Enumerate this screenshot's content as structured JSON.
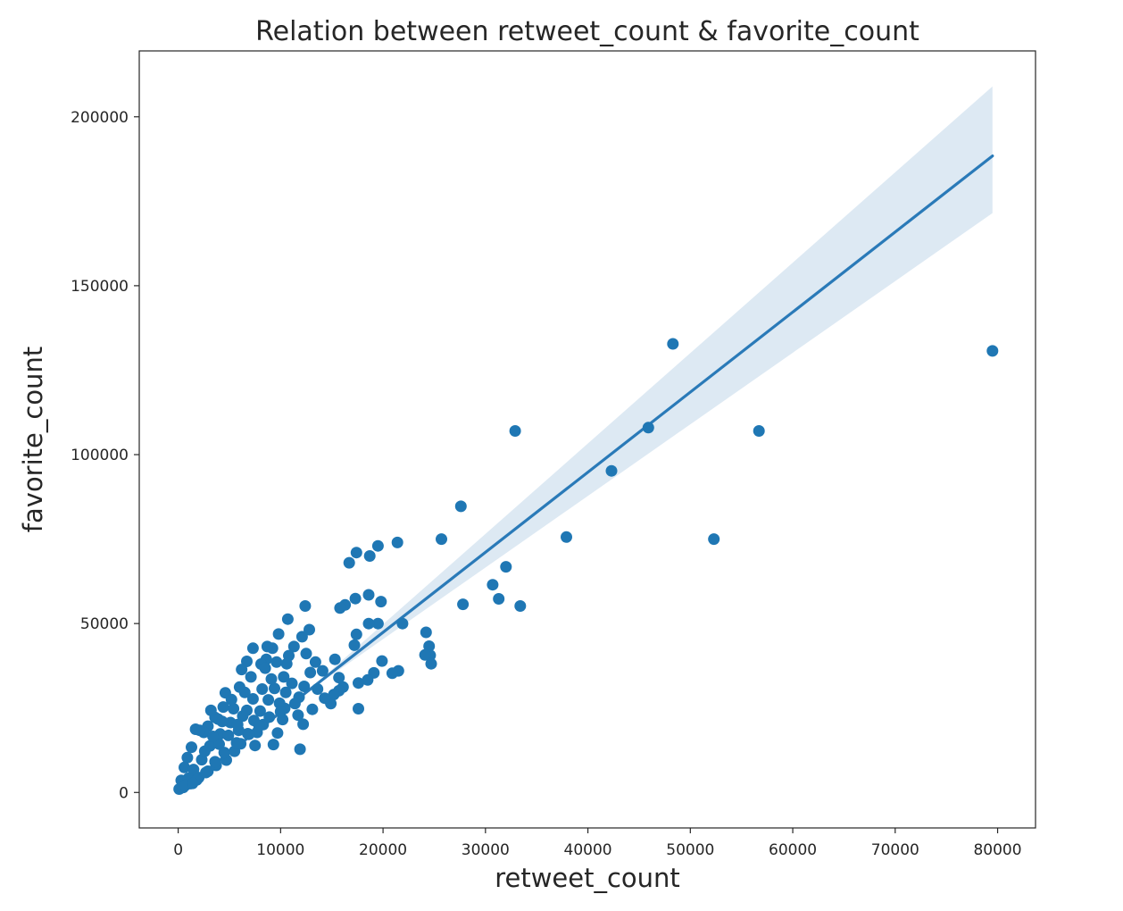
{
  "chart_data": {
    "type": "scatter",
    "title": "Relation between retweet_count & favorite_count",
    "xlabel": "retweet_count",
    "ylabel": "favorite_count",
    "xlim": [
      -3800,
      83700
    ],
    "ylim": [
      -10500,
      219500
    ],
    "xticks": [
      0,
      10000,
      20000,
      30000,
      40000,
      50000,
      60000,
      70000,
      80000
    ],
    "yticks": [
      0,
      50000,
      100000,
      150000,
      200000
    ],
    "grid": false,
    "legend": "none",
    "colors": {
      "points": "#1f77b4",
      "line": "#2a7ab8",
      "ci_band": "#dde9f3",
      "frame": "#262626"
    },
    "regression": {
      "slope": 2.37,
      "intercept": 0,
      "x_range": [
        0,
        79500
      ],
      "ci_end_upper": 209000,
      "ci_end_lower": 171500,
      "ci_pinch_x": 13000
    },
    "points": [
      [
        79500,
        130700
      ],
      [
        48300,
        132800
      ],
      [
        45900,
        108000
      ],
      [
        56700,
        107000
      ],
      [
        32900,
        107000
      ],
      [
        42300,
        95200
      ],
      [
        52300,
        75000
      ],
      [
        37900,
        75600
      ],
      [
        27600,
        84700
      ],
      [
        25700,
        75000
      ],
      [
        32000,
        66800
      ],
      [
        30700,
        61500
      ],
      [
        31300,
        57300
      ],
      [
        33400,
        55200
      ],
      [
        27800,
        55700
      ],
      [
        21400,
        74000
      ],
      [
        19500,
        73000
      ],
      [
        18700,
        70000
      ],
      [
        17400,
        71000
      ],
      [
        16700,
        68000
      ],
      [
        21900,
        50000
      ],
      [
        19800,
        56500
      ],
      [
        18600,
        58500
      ],
      [
        17300,
        57400
      ],
      [
        16300,
        55500
      ],
      [
        15800,
        54600
      ],
      [
        12400,
        55200
      ],
      [
        10700,
        51300
      ],
      [
        19500,
        50000
      ],
      [
        18600,
        50000
      ],
      [
        17400,
        46800
      ],
      [
        17200,
        43600
      ],
      [
        24200,
        47400
      ],
      [
        24500,
        43300
      ],
      [
        24600,
        40600
      ],
      [
        24100,
        40700
      ],
      [
        24700,
        38100
      ],
      [
        21500,
        36000
      ],
      [
        20900,
        35300
      ],
      [
        19900,
        38900
      ],
      [
        19100,
        35400
      ],
      [
        18500,
        33300
      ],
      [
        17600,
        32400
      ],
      [
        17600,
        24800
      ],
      [
        16100,
        31200
      ],
      [
        15700,
        30100
      ],
      [
        15200,
        29000
      ],
      [
        14900,
        26300
      ],
      [
        15300,
        39400
      ],
      [
        15700,
        34000
      ],
      [
        14100,
        36000
      ],
      [
        13400,
        38600
      ],
      [
        12900,
        35500
      ],
      [
        12500,
        41100
      ],
      [
        12800,
        48200
      ],
      [
        12100,
        46100
      ],
      [
        11300,
        43200
      ],
      [
        10800,
        40500
      ],
      [
        10600,
        38100
      ],
      [
        10300,
        34200
      ],
      [
        9800,
        46900
      ],
      [
        9200,
        42700
      ],
      [
        8600,
        39400
      ],
      [
        8700,
        43200
      ],
      [
        8100,
        38000
      ],
      [
        7300,
        42700
      ],
      [
        6700,
        38800
      ],
      [
        6200,
        36400
      ],
      [
        12300,
        31400
      ],
      [
        11800,
        28200
      ],
      [
        11400,
        26300
      ],
      [
        11700,
        22900
      ],
      [
        12200,
        20200
      ],
      [
        11900,
        12800
      ],
      [
        10400,
        24900
      ],
      [
        10200,
        21600
      ],
      [
        9700,
        17600
      ],
      [
        9300,
        14200
      ],
      [
        8300,
        20100
      ],
      [
        7700,
        17800
      ],
      [
        7500,
        13900
      ],
      [
        6500,
        29600
      ],
      [
        6300,
        22600
      ],
      [
        5900,
        18400
      ],
      [
        5400,
        24800
      ],
      [
        5100,
        20700
      ],
      [
        4600,
        29500
      ],
      [
        4400,
        25300
      ],
      [
        4100,
        17300
      ],
      [
        3900,
        21700
      ],
      [
        3600,
        22200
      ],
      [
        3200,
        24300
      ],
      [
        2900,
        19600
      ],
      [
        2500,
        17800
      ],
      [
        2100,
        18400
      ],
      [
        1700,
        18700
      ],
      [
        1300,
        13400
      ],
      [
        900,
        10300
      ],
      [
        600,
        7400
      ],
      [
        300,
        3600
      ],
      [
        100,
        1000
      ],
      [
        500,
        1500
      ],
      [
        1200,
        2600
      ],
      [
        2000,
        4400
      ],
      [
        2900,
        6300
      ],
      [
        3700,
        8000
      ],
      [
        4700,
        9600
      ],
      [
        5500,
        12200
      ],
      [
        6100,
        14400
      ],
      [
        6800,
        17400
      ],
      [
        7400,
        21300
      ],
      [
        8000,
        24100
      ],
      [
        8800,
        27400
      ],
      [
        9400,
        30800
      ],
      [
        9900,
        26400
      ],
      [
        10500,
        29600
      ],
      [
        11100,
        32300
      ],
      [
        13600,
        30600
      ],
      [
        14300,
        27900
      ],
      [
        13100,
        24600
      ],
      [
        1500,
        6800
      ],
      [
        2300,
        9700
      ],
      [
        3100,
        13800
      ],
      [
        4000,
        14300
      ],
      [
        4900,
        16900
      ],
      [
        5800,
        20100
      ],
      [
        6700,
        24300
      ],
      [
        7300,
        27700
      ],
      [
        8200,
        30600
      ],
      [
        9100,
        33600
      ],
      [
        2600,
        12200
      ],
      [
        3400,
        16600
      ],
      [
        4300,
        21000
      ],
      [
        5200,
        27500
      ],
      [
        6000,
        31200
      ],
      [
        7100,
        34200
      ],
      [
        8500,
        36800
      ],
      [
        9600,
        38600
      ],
      [
        1000,
        4200
      ],
      [
        1800,
        3700
      ],
      [
        2700,
        5900
      ],
      [
        3600,
        9100
      ],
      [
        4500,
        11800
      ],
      [
        5700,
        14700
      ],
      [
        6900,
        17200
      ],
      [
        7900,
        19700
      ],
      [
        8900,
        22300
      ],
      [
        10000,
        23900
      ],
      [
        700,
        2100
      ],
      [
        1400,
        2700
      ]
    ]
  }
}
